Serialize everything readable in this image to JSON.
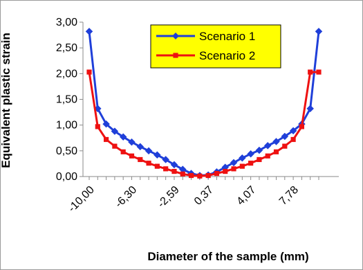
{
  "chart_data": {
    "type": "line",
    "xlabel": "Diameter of the sample (mm)",
    "ylabel": "Equivalent plastic strain",
    "ylim": [
      0,
      3
    ],
    "y_ticks": [
      "0,00",
      "0,50",
      "1,00",
      "1,50",
      "2,00",
      "2,50",
      "3,00"
    ],
    "x_tick_labels": [
      "-10,00",
      "-6,30",
      "-2,59",
      "0,37",
      "4,07",
      "7,78"
    ],
    "x_tick_label_index": [
      0,
      5,
      10,
      14,
      19,
      24
    ],
    "point_count": 28,
    "grid": false,
    "legend_position": "top-right",
    "series": [
      {
        "name": "Scenario 1",
        "color": "#1f3fd9",
        "marker": "diamond",
        "values": [
          2.82,
          1.32,
          1.02,
          0.88,
          0.77,
          0.67,
          0.58,
          0.5,
          0.42,
          0.33,
          0.23,
          0.14,
          0.06,
          0.02,
          0.03,
          0.09,
          0.18,
          0.27,
          0.36,
          0.44,
          0.51,
          0.6,
          0.68,
          0.78,
          0.89,
          1.02,
          1.32,
          2.82
        ]
      },
      {
        "name": "Scenario 2",
        "color": "#ee1111",
        "marker": "square",
        "values": [
          2.03,
          0.97,
          0.72,
          0.59,
          0.48,
          0.4,
          0.33,
          0.26,
          0.2,
          0.15,
          0.1,
          0.05,
          0.02,
          0.01,
          0.02,
          0.06,
          0.1,
          0.15,
          0.2,
          0.26,
          0.33,
          0.4,
          0.48,
          0.59,
          0.72,
          0.97,
          2.03,
          2.03
        ]
      }
    ]
  }
}
